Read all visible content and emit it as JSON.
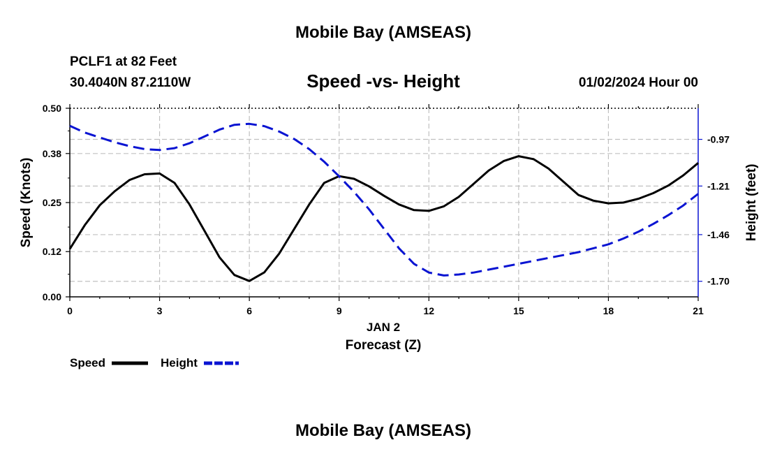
{
  "header": {
    "title": "Mobile Bay (AMSEAS)",
    "station": "PCLF1 at 82 Feet",
    "coords": "30.4040N  87.2110W",
    "date": "01/02/2024 Hour 00"
  },
  "footer": {
    "title": "Mobile Bay (AMSEAS)"
  },
  "colors": {
    "speed": "#000000",
    "height": "#0a14d2",
    "grid": "#c0c0c0"
  },
  "chart_data": {
    "type": "line",
    "title": "Speed -vs- Height",
    "xlabel": "Forecast (Z)",
    "xdate_label": "JAN 2",
    "ylabel": "Speed (Knots)",
    "y2label": "Height (feet)",
    "xlim": [
      0,
      21
    ],
    "ylim": [
      0,
      0.5
    ],
    "y2lim": [
      -1.78,
      -0.81
    ],
    "x_ticks": [
      "0",
      "3",
      "6",
      "9",
      "12",
      "15",
      "18",
      "21"
    ],
    "y_ticks": [
      "0.00",
      "0.12",
      "0.25",
      "0.38",
      "0.50"
    ],
    "y2_ticks": [
      "-0.97",
      "-1.21",
      "-1.46",
      "-1.70"
    ],
    "grid": true,
    "legend": "bottom-left",
    "series": [
      {
        "name": "Speed",
        "axis": "left",
        "style": "solid",
        "x": [
          0,
          0.5,
          1,
          1.5,
          2,
          2.5,
          3,
          3.5,
          4,
          4.5,
          5,
          5.5,
          6,
          6.5,
          7,
          7.5,
          8,
          8.5,
          9,
          9.5,
          10,
          10.5,
          11,
          11.5,
          12,
          12.5,
          13,
          13.5,
          14,
          14.5,
          15,
          15.5,
          16,
          16.5,
          17,
          17.5,
          18,
          18.5,
          19,
          19.5,
          20,
          20.5,
          21
        ],
        "values": [
          0.127,
          0.19,
          0.243,
          0.28,
          0.31,
          0.325,
          0.327,
          0.302,
          0.245,
          0.175,
          0.105,
          0.058,
          0.042,
          0.065,
          0.115,
          0.18,
          0.245,
          0.302,
          0.32,
          0.313,
          0.293,
          0.268,
          0.245,
          0.23,
          0.228,
          0.24,
          0.265,
          0.3,
          0.335,
          0.36,
          0.373,
          0.365,
          0.34,
          0.305,
          0.27,
          0.255,
          0.248,
          0.25,
          0.26,
          0.275,
          0.295,
          0.322,
          0.355
        ]
      },
      {
        "name": "Height",
        "axis": "right",
        "style": "dashed",
        "x": [
          0,
          0.5,
          1,
          1.5,
          2,
          2.5,
          3,
          3.5,
          4,
          4.5,
          5,
          5.5,
          6,
          6.5,
          7,
          7.5,
          8,
          8.5,
          9,
          9.5,
          10,
          10.5,
          11,
          11.5,
          12,
          12.5,
          13,
          13.5,
          14,
          14.5,
          15,
          15.5,
          16,
          16.5,
          17,
          17.5,
          18,
          18.5,
          19,
          19.5,
          20,
          20.5,
          21
        ],
        "values": [
          -0.9,
          -0.935,
          -0.96,
          -0.985,
          -1.005,
          -1.02,
          -1.025,
          -1.015,
          -0.99,
          -0.955,
          -0.92,
          -0.895,
          -0.89,
          -0.902,
          -0.93,
          -0.968,
          -1.02,
          -1.085,
          -1.16,
          -1.24,
          -1.33,
          -1.43,
          -1.53,
          -1.61,
          -1.655,
          -1.67,
          -1.665,
          -1.655,
          -1.64,
          -1.625,
          -1.61,
          -1.595,
          -1.58,
          -1.565,
          -1.55,
          -1.53,
          -1.51,
          -1.48,
          -1.445,
          -1.405,
          -1.36,
          -1.31,
          -1.25
        ]
      }
    ]
  }
}
